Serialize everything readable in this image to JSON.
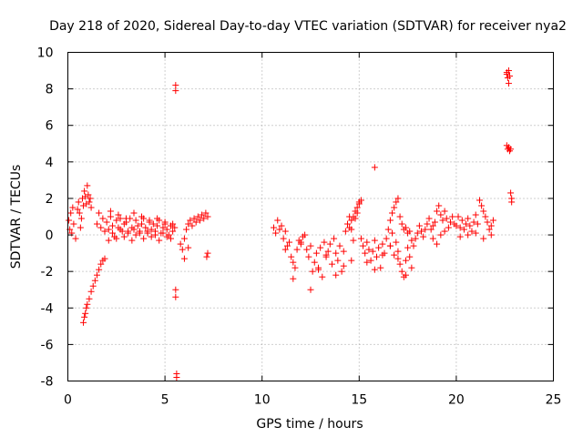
{
  "chart_data": {
    "type": "scatter",
    "title": "Day 218 of 2020, Sidereal Day-to-day VTEC variation (SDTVAR) for receiver nya2",
    "xlabel": "GPS time / hours",
    "ylabel": "SDTVAR / TECUs",
    "xlim": [
      0,
      25
    ],
    "ylim": [
      -8,
      10
    ],
    "xticks": [
      0,
      5,
      10,
      15,
      20,
      25
    ],
    "yticks": [
      -8,
      -6,
      -4,
      -2,
      0,
      2,
      4,
      6,
      8,
      10
    ],
    "xtick_labels": [
      "0",
      "5",
      "10",
      "15",
      "20",
      "25"
    ],
    "ytick_labels": [
      "-8",
      "-6",
      "-4",
      "-2",
      "0",
      "2",
      "4",
      "6",
      "8",
      "10"
    ],
    "grid": true,
    "marker": "+",
    "color": "#ff0000",
    "series": [
      {
        "name": "nya2",
        "x": [
          0.05,
          0.1,
          0.15,
          0.2,
          0.25,
          0.3,
          0.4,
          0.5,
          0.55,
          0.6,
          0.65,
          0.7,
          0.75,
          0.8,
          0.85,
          0.9,
          0.95,
          1.0,
          1.05,
          1.1,
          1.15,
          1.2,
          0.8,
          0.85,
          0.9,
          0.95,
          1.0,
          1.1,
          1.2,
          1.3,
          1.4,
          1.5,
          1.6,
          1.7,
          1.8,
          1.9,
          1.5,
          1.6,
          1.7,
          1.8,
          1.9,
          2.0,
          2.1,
          2.2,
          2.3,
          2.4,
          2.5,
          2.6,
          2.7,
          2.8,
          2.9,
          3.0,
          3.1,
          3.2,
          3.3,
          3.4,
          3.5,
          3.6,
          3.7,
          3.8,
          3.9,
          4.0,
          4.1,
          4.2,
          4.3,
          4.4,
          4.5,
          4.6,
          4.7,
          4.8,
          4.9,
          5.0,
          5.1,
          5.2,
          5.3,
          5.4,
          5.5,
          2.1,
          2.3,
          2.5,
          2.7,
          2.9,
          3.1,
          3.3,
          3.5,
          3.7,
          3.9,
          4.1,
          4.3,
          4.5,
          4.7,
          4.9,
          5.1,
          5.3,
          2.2,
          2.6,
          3.0,
          3.4,
          3.8,
          4.2,
          4.6,
          5.0,
          5.4,
          5.55,
          5.55,
          5.55,
          5.55,
          5.6,
          5.6,
          5.8,
          5.9,
          6.0,
          6.1,
          6.2,
          6.3,
          6.4,
          6.5,
          6.6,
          6.7,
          6.8,
          6.9,
          7.0,
          7.1,
          7.2,
          6.0,
          6.2,
          7.15,
          7.2,
          10.6,
          10.7,
          10.8,
          10.9,
          11.0,
          11.1,
          11.2,
          11.3,
          11.4,
          11.5,
          11.6,
          11.7,
          11.8,
          11.9,
          12.0,
          12.1,
          12.2,
          12.3,
          12.4,
          12.5,
          12.6,
          12.7,
          12.8,
          12.9,
          13.0,
          13.1,
          13.2,
          13.3,
          13.4,
          13.5,
          13.6,
          13.7,
          13.8,
          13.9,
          14.0,
          14.1,
          14.2,
          14.3,
          14.4,
          14.5,
          14.6,
          14.7,
          14.8,
          14.9,
          15.0,
          11.2,
          11.6,
          12.0,
          12.5,
          12.9,
          13.3,
          13.8,
          14.2,
          14.6,
          14.5,
          14.6,
          14.7,
          14.8,
          14.9,
          15.0,
          15.1,
          15.1,
          15.2,
          15.3,
          15.4,
          15.5,
          15.6,
          15.7,
          15.8,
          15.9,
          16.0,
          16.1,
          16.2,
          16.3,
          16.4,
          16.5,
          16.6,
          16.7,
          16.8,
          16.9,
          17.0,
          17.1,
          17.2,
          17.3,
          17.4,
          17.5,
          17.6,
          17.7,
          15.4,
          15.8,
          16.2,
          16.6,
          17.0,
          17.4,
          15.8,
          16.6,
          16.7,
          16.8,
          16.9,
          17.0,
          17.1,
          17.2,
          17.3,
          17.4,
          17.5,
          17.6,
          17.7,
          17.8,
          17.9,
          18.0,
          18.1,
          18.2,
          18.3,
          18.4,
          18.5,
          18.6,
          18.7,
          18.8,
          18.9,
          19.0,
          19.1,
          19.2,
          19.3,
          19.4,
          19.5,
          19.6,
          19.7,
          19.8,
          19.9,
          20.0,
          20.1,
          20.2,
          20.3,
          20.4,
          20.5,
          20.6,
          20.7,
          20.8,
          20.9,
          21.0,
          21.1,
          21.2,
          21.3,
          21.4,
          21.5,
          21.6,
          21.7,
          21.8,
          21.9,
          18.8,
          19.0,
          19.2,
          19.4,
          20.2,
          20.6,
          21.0,
          21.4,
          21.8,
          22.6,
          22.65,
          22.7,
          22.75,
          22.6,
          22.65,
          22.7,
          22.75,
          22.8,
          22.85,
          22.6,
          22.7,
          22.8,
          22.85
        ],
        "y": [
          0.8,
          0.3,
          1.2,
          0.1,
          1.5,
          0.6,
          -0.2,
          1.4,
          1.8,
          1.2,
          0.4,
          0.9,
          2.0,
          1.6,
          2.4,
          2.1,
          1.7,
          2.7,
          2.2,
          1.8,
          2.0,
          1.5,
          -4.8,
          -4.5,
          -4.3,
          -4.0,
          -3.8,
          -3.5,
          -3.1,
          -2.8,
          -2.5,
          -2.2,
          -1.9,
          -1.6,
          -1.4,
          -1.3,
          0.6,
          1.2,
          0.4,
          0.9,
          0.2,
          0.7,
          0.3,
          1.0,
          0.5,
          -0.1,
          0.8,
          0.4,
          0.9,
          0.2,
          0.6,
          0.7,
          0.1,
          0.9,
          0.4,
          0.3,
          0.8,
          0.5,
          0.2,
          0.6,
          0.9,
          0.4,
          0.1,
          0.7,
          0.3,
          0.6,
          0.2,
          0.5,
          0.8,
          0.1,
          0.4,
          0.6,
          0.3,
          0.0,
          0.5,
          0.2,
          0.4,
          -0.3,
          0.1,
          -0.2,
          0.3,
          -0.1,
          0.2,
          -0.3,
          0.0,
          0.1,
          -0.2,
          0.2,
          -0.1,
          0.0,
          -0.3,
          0.1,
          -0.1,
          -0.2,
          1.3,
          1.1,
          0.9,
          1.2,
          1.0,
          0.8,
          0.9,
          0.7,
          0.6,
          8.2,
          7.9,
          -3.0,
          -3.4,
          -7.6,
          -7.8,
          -0.5,
          -0.8,
          -0.2,
          0.3,
          0.6,
          0.8,
          0.5,
          0.9,
          0.7,
          1.0,
          0.8,
          1.1,
          0.9,
          1.2,
          1.0,
          -1.3,
          -0.7,
          -1.2,
          -1.0,
          0.4,
          0.1,
          0.8,
          0.3,
          0.5,
          -0.2,
          0.2,
          -0.6,
          -0.4,
          -1.2,
          -2.4,
          -1.8,
          -0.8,
          -0.3,
          -0.5,
          -0.1,
          0.0,
          -0.8,
          -1.2,
          -0.6,
          -2.0,
          -1.5,
          -1.0,
          -1.8,
          -0.7,
          -2.3,
          -0.4,
          -1.2,
          -0.9,
          -0.5,
          -1.6,
          -0.2,
          -1.0,
          -1.4,
          -0.6,
          -2.0,
          -0.9,
          0.2,
          0.6,
          1.0,
          0.3,
          -0.3,
          0.9,
          1.2,
          1.8,
          -0.8,
          -1.5,
          -0.4,
          -3.0,
          -1.9,
          -1.1,
          -2.2,
          -1.7,
          -1.4,
          0.4,
          0.8,
          1.0,
          1.3,
          1.5,
          1.7,
          1.9,
          -0.2,
          -0.6,
          -1.0,
          -0.4,
          -0.8,
          -1.4,
          -0.9,
          -0.3,
          -1.2,
          -0.7,
          -1.8,
          -0.5,
          -1.0,
          -0.2,
          0.3,
          -0.6,
          0.1,
          -1.1,
          -0.4,
          -0.9,
          -1.6,
          -2.0,
          -2.3,
          -1.4,
          -0.7,
          -1.2,
          -1.8,
          -1.5,
          -1.9,
          -1.1,
          -0.6,
          -1.3,
          -2.2,
          3.7,
          0.8,
          1.2,
          1.5,
          1.8,
          2.0,
          1.0,
          0.6,
          0.3,
          0.4,
          0.1,
          0.2,
          -0.3,
          -0.6,
          -0.2,
          0.1,
          0.5,
          0.2,
          -0.1,
          0.3,
          0.6,
          0.9,
          0.3,
          0.5,
          0.7,
          1.3,
          1.6,
          1.1,
          0.8,
          1.3,
          0.9,
          0.4,
          0.7,
          1.0,
          0.6,
          0.5,
          1.0,
          0.4,
          0.8,
          0.3,
          0.6,
          0.9,
          0.5,
          0.2,
          0.7,
          1.1,
          0.6,
          1.9,
          1.6,
          1.3,
          1.0,
          0.7,
          0.3,
          0.5,
          0.8,
          -0.2,
          -0.5,
          0.0,
          0.2,
          -0.1,
          0.0,
          0.1,
          -0.2,
          0.0,
          8.9,
          8.6,
          8.3,
          8.7,
          4.9,
          4.7,
          4.8,
          4.6,
          2.3,
          1.8,
          8.8,
          9.0,
          4.7,
          2.0
        ]
      }
    ]
  }
}
